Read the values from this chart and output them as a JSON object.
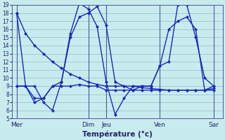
{
  "title": "Température (°c)",
  "bg_color": "#c8ecee",
  "grid_color": "#9ab8cc",
  "line_color": "#1a2ab8",
  "tick_color": "#222266",
  "ylim": [
    5,
    19
  ],
  "yticks": [
    5,
    6,
    7,
    8,
    9,
    10,
    11,
    12,
    13,
    14,
    15,
    16,
    17,
    18,
    19
  ],
  "day_labels": [
    "Mer",
    "Dim",
    "Jeu",
    "Ven",
    "Sar"
  ],
  "day_positions": [
    0,
    16,
    20,
    32,
    44
  ],
  "xlim": [
    -1,
    46
  ],
  "series1_x": [
    0,
    2,
    4,
    6,
    8,
    10,
    12,
    14,
    16,
    18,
    20,
    22,
    24,
    26,
    28,
    30,
    32,
    34,
    36,
    38,
    40,
    42,
    44
  ],
  "series1_y": [
    18,
    15.5,
    14.0,
    13.0,
    12.0,
    11.2,
    10.5,
    10.0,
    9.5,
    9.2,
    9.0,
    9.0,
    9.0,
    9.0,
    8.8,
    8.7,
    8.6,
    8.5,
    8.5,
    8.5,
    8.5,
    8.5,
    8.7
  ],
  "series2_x": [
    0,
    2,
    4,
    6,
    8,
    10,
    12,
    14,
    16,
    18,
    20,
    22,
    24,
    26,
    28,
    30,
    32,
    34,
    36,
    38,
    40,
    42,
    44
  ],
  "series2_y": [
    18,
    9.0,
    9.0,
    7.0,
    6.0,
    9.5,
    15.0,
    17.5,
    18.0,
    18.8,
    16.5,
    9.5,
    9.0,
    8.5,
    9.0,
    9.0,
    11.5,
    12.0,
    19.0,
    19.0,
    15.0,
    10.0,
    9.0
  ],
  "series3_x": [
    0,
    2,
    4,
    6,
    8,
    10,
    12,
    14,
    16,
    18,
    20,
    22,
    24,
    26,
    28,
    30,
    32,
    34,
    36,
    38,
    40,
    42,
    44
  ],
  "series3_y": [
    9.0,
    9.0,
    7.5,
    7.5,
    9.0,
    9.5,
    15.5,
    19.2,
    18.5,
    16.3,
    9.5,
    5.5,
    7.5,
    9.0,
    9.0,
    9.0,
    11.5,
    16.0,
    17.0,
    17.5,
    16.0,
    8.5,
    9.0
  ],
  "series4_x": [
    0,
    2,
    4,
    6,
    8,
    10,
    12,
    14,
    16,
    18,
    20,
    22,
    24,
    26,
    28,
    30,
    32,
    34,
    36,
    38,
    40,
    42,
    44
  ],
  "series4_y": [
    9.0,
    9.0,
    7.0,
    7.5,
    9.0,
    9.0,
    9.0,
    9.2,
    9.0,
    9.0,
    8.5,
    8.5,
    8.5,
    8.5,
    8.5,
    8.5,
    8.5,
    8.5,
    8.5,
    8.5,
    8.5,
    8.5,
    8.5
  ],
  "sep_color": "#555599",
  "marker": "D",
  "markersize": 2.2,
  "linewidth": 1.0
}
